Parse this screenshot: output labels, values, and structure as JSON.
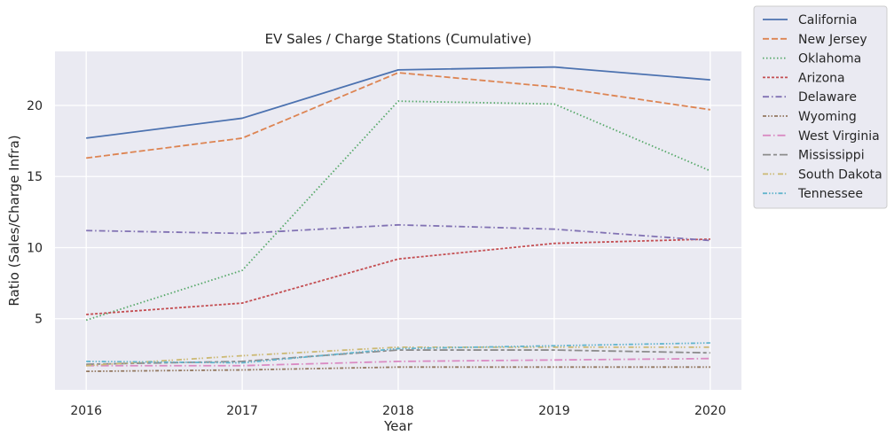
{
  "chart_data": {
    "type": "line",
    "title": "EV Sales / Charge Stations (Cumulative)",
    "xlabel": "Year",
    "ylabel": "Ratio (Sales/Charge Infra)",
    "x": [
      "2016",
      "2017",
      "2018",
      "2019",
      "2020"
    ],
    "xlim": [
      2015.8,
      2020.2
    ],
    "ylim": [
      0.0,
      23.8
    ],
    "yticks": [
      5,
      10,
      15,
      20
    ],
    "grid": true,
    "legend_position": "outside-right",
    "series": [
      {
        "name": "California",
        "color": "#4c72b0",
        "dash": "solid",
        "values": [
          17.7,
          19.1,
          22.5,
          22.7,
          21.8
        ]
      },
      {
        "name": "New Jersey",
        "color": "#dd8452",
        "dash": "dashed",
        "values": [
          16.3,
          17.7,
          22.3,
          21.3,
          19.7
        ]
      },
      {
        "name": "Oklahoma",
        "color": "#55a868",
        "dash": "dotted",
        "values": [
          4.9,
          8.4,
          20.3,
          20.1,
          15.4
        ]
      },
      {
        "name": "Arizona",
        "color": "#c44e52",
        "dash": "short-dashed",
        "values": [
          5.3,
          6.1,
          9.2,
          10.3,
          10.6
        ]
      },
      {
        "name": "Delaware",
        "color": "#8172b3",
        "dash": "dash-dot",
        "values": [
          11.2,
          11.0,
          11.6,
          11.3,
          10.5
        ]
      },
      {
        "name": "Wyoming",
        "color": "#937860",
        "dash": "dash-dot-dot",
        "values": [
          1.3,
          1.4,
          1.6,
          1.6,
          1.6
        ]
      },
      {
        "name": "West Virginia",
        "color": "#da8bc3",
        "dash": "long-dash-dot",
        "values": [
          1.7,
          1.7,
          2.0,
          2.1,
          2.2
        ]
      },
      {
        "name": "Mississippi",
        "color": "#8c8c8c",
        "dash": "long-dash-short",
        "values": [
          1.8,
          2.0,
          2.8,
          2.8,
          2.6
        ]
      },
      {
        "name": "South Dakota",
        "color": "#ccb974",
        "dash": "dash-dot-dot-long",
        "values": [
          1.7,
          2.4,
          3.0,
          3.0,
          3.0
        ]
      },
      {
        "name": "Tennessee",
        "color": "#64b5cd",
        "dash": "dash-dot-dot-dot",
        "values": [
          2.0,
          1.9,
          2.9,
          3.1,
          3.3
        ]
      }
    ]
  }
}
